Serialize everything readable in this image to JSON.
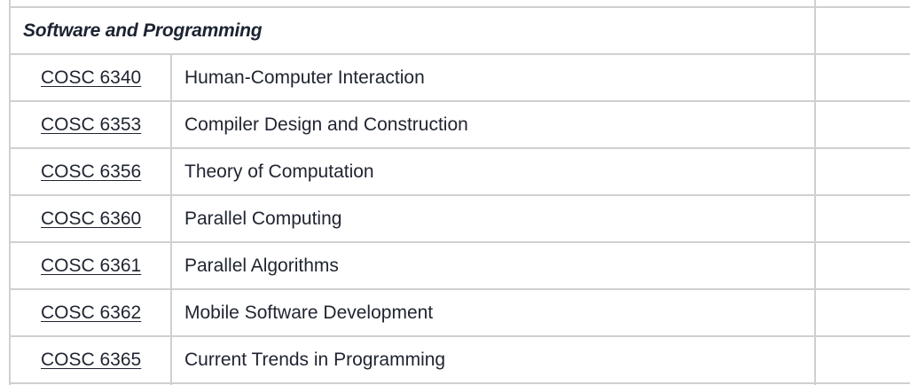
{
  "section": {
    "title": "Software and Programming"
  },
  "courses": [
    {
      "code": "COSC 6340",
      "title": "Human-Computer Interaction"
    },
    {
      "code": "COSC 6353",
      "title": "Compiler Design and Construction"
    },
    {
      "code": "COSC 6356",
      "title": "Theory of Computation"
    },
    {
      "code": "COSC 6360",
      "title": "Parallel Computing"
    },
    {
      "code": "COSC 6361",
      "title": "Parallel Algorithms"
    },
    {
      "code": "COSC 6362",
      "title": "Mobile Software Development"
    },
    {
      "code": "COSC 6365",
      "title": "Current Trends in Programming"
    }
  ],
  "colors": {
    "border": "#d0d0d0",
    "text": "#1f2430",
    "background": "#ffffff"
  }
}
